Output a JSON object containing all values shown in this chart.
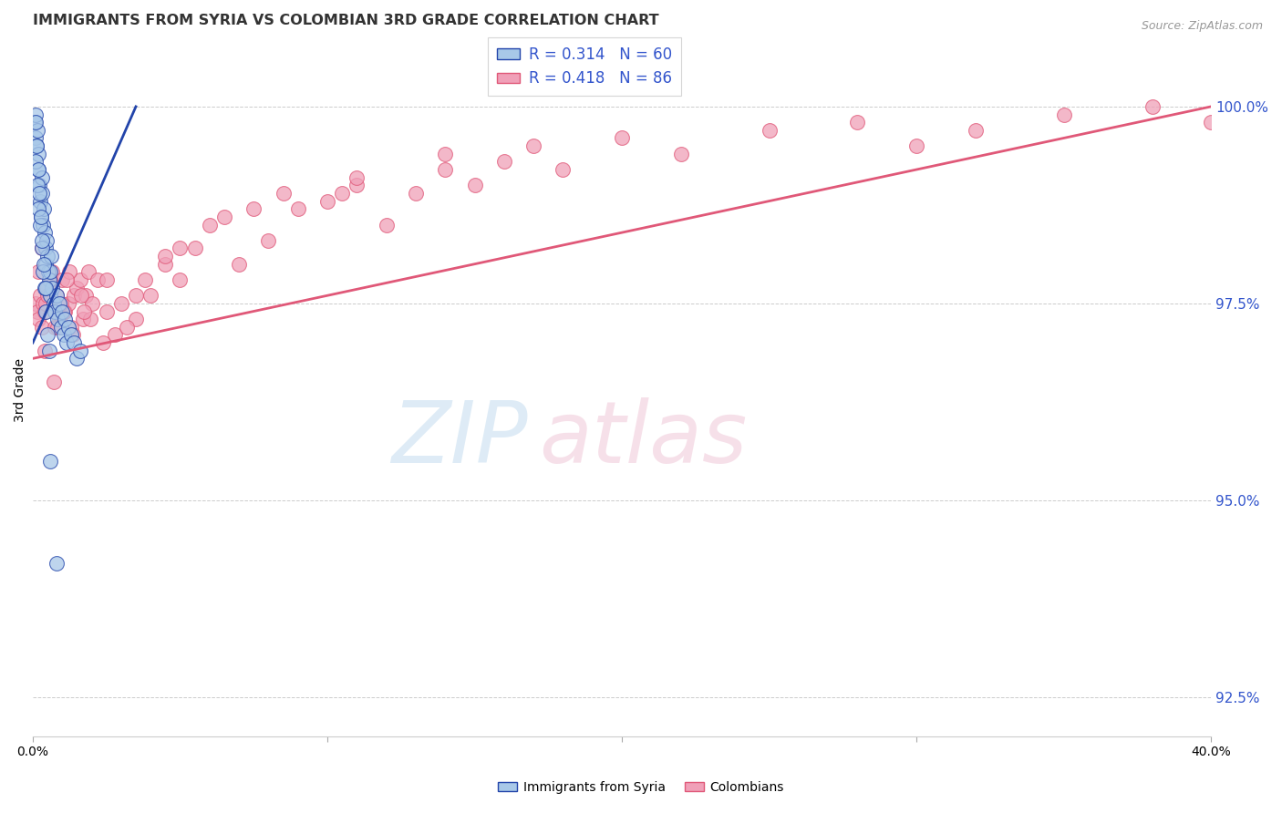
{
  "title": "IMMIGRANTS FROM SYRIA VS COLOMBIAN 3RD GRADE CORRELATION CHART",
  "source": "Source: ZipAtlas.com",
  "ylabel": "3rd Grade",
  "ylabel_right_ticks": [
    92.5,
    95.0,
    97.5,
    100.0
  ],
  "ylabel_right_labels": [
    "92.5%",
    "95.0%",
    "97.5%",
    "100.0%"
  ],
  "xmin": 0.0,
  "xmax": 40.0,
  "ymin": 92.0,
  "ymax": 100.8,
  "syria_color": "#a8c8e8",
  "colombia_color": "#f0a0b8",
  "syria_line_color": "#2244aa",
  "colombia_line_color": "#e05878",
  "legend_syria_label_r": "R = 0.314",
  "legend_syria_label_n": "N = 60",
  "legend_colombia_label_r": "R = 0.418",
  "legend_colombia_label_n": "N = 86",
  "legend_immigrants_label": "Immigrants from Syria",
  "legend_colombians_label": "Colombians",
  "watermark_zip": "ZIP",
  "watermark_atlas": "atlas",
  "background_color": "#ffffff",
  "grid_color": "#cccccc",
  "axis_label_color": "#3355cc",
  "title_color": "#333333",
  "syria_x": [
    0.05,
    0.08,
    0.1,
    0.12,
    0.15,
    0.18,
    0.2,
    0.22,
    0.25,
    0.28,
    0.3,
    0.32,
    0.35,
    0.38,
    0.4,
    0.42,
    0.45,
    0.48,
    0.5,
    0.52,
    0.55,
    0.58,
    0.6,
    0.62,
    0.65,
    0.7,
    0.75,
    0.8,
    0.85,
    0.9,
    0.95,
    1.0,
    1.05,
    1.1,
    1.15,
    1.2,
    1.3,
    1.4,
    1.5,
    1.6,
    0.1,
    0.15,
    0.2,
    0.25,
    0.3,
    0.35,
    0.4,
    0.45,
    0.5,
    0.55,
    0.08,
    0.12,
    0.18,
    0.22,
    0.28,
    0.32,
    0.38,
    0.42,
    0.6,
    0.8
  ],
  "syria_y": [
    99.8,
    99.6,
    99.9,
    99.5,
    99.7,
    99.4,
    99.2,
    99.0,
    98.8,
    98.6,
    98.9,
    99.1,
    98.5,
    98.7,
    98.4,
    98.2,
    98.0,
    98.3,
    98.1,
    97.9,
    97.8,
    97.6,
    97.9,
    98.1,
    97.7,
    97.5,
    97.4,
    97.6,
    97.3,
    97.5,
    97.2,
    97.4,
    97.1,
    97.3,
    97.0,
    97.2,
    97.1,
    97.0,
    96.8,
    96.9,
    99.3,
    99.0,
    98.7,
    98.5,
    98.2,
    97.9,
    97.7,
    97.4,
    97.1,
    96.9,
    99.8,
    99.5,
    99.2,
    98.9,
    98.6,
    98.3,
    98.0,
    97.7,
    95.5,
    94.2
  ],
  "colombia_x": [
    0.1,
    0.15,
    0.2,
    0.25,
    0.3,
    0.35,
    0.4,
    0.5,
    0.55,
    0.6,
    0.65,
    0.7,
    0.8,
    0.9,
    1.0,
    1.1,
    1.2,
    1.3,
    1.4,
    1.5,
    1.6,
    1.7,
    1.8,
    1.9,
    2.0,
    2.2,
    2.5,
    2.8,
    3.0,
    3.5,
    4.0,
    4.5,
    5.0,
    5.5,
    6.0,
    7.0,
    8.0,
    9.0,
    10.0,
    11.0,
    12.0,
    13.0,
    14.0,
    15.0,
    16.0,
    17.0,
    18.0,
    20.0,
    22.0,
    25.0,
    28.0,
    30.0,
    32.0,
    35.0,
    38.0,
    40.0,
    0.45,
    0.75,
    1.05,
    1.35,
    1.65,
    1.95,
    2.4,
    3.2,
    3.8,
    4.5,
    6.5,
    8.5,
    11.0,
    14.0,
    0.3,
    0.6,
    0.95,
    1.25,
    1.75,
    2.5,
    3.5,
    5.0,
    7.5,
    10.5,
    0.2,
    0.5,
    0.85,
    1.15,
    0.4,
    0.7
  ],
  "colombia_y": [
    97.5,
    97.4,
    97.3,
    97.6,
    97.2,
    97.5,
    97.4,
    97.7,
    97.6,
    97.8,
    97.9,
    97.5,
    97.6,
    97.3,
    97.8,
    97.4,
    97.5,
    97.2,
    97.6,
    97.7,
    97.8,
    97.3,
    97.6,
    97.9,
    97.5,
    97.8,
    97.4,
    97.1,
    97.5,
    97.3,
    97.6,
    98.0,
    97.8,
    98.2,
    98.5,
    98.0,
    98.3,
    98.7,
    98.8,
    99.0,
    98.5,
    98.9,
    99.2,
    99.0,
    99.3,
    99.5,
    99.2,
    99.6,
    99.4,
    99.7,
    99.8,
    99.5,
    99.7,
    99.9,
    100.0,
    99.8,
    97.5,
    97.2,
    97.4,
    97.1,
    97.6,
    97.3,
    97.0,
    97.2,
    97.8,
    98.1,
    98.6,
    98.9,
    99.1,
    99.4,
    98.2,
    97.8,
    97.5,
    97.9,
    97.4,
    97.8,
    97.6,
    98.2,
    98.7,
    98.9,
    97.9,
    97.6,
    97.2,
    97.8,
    96.9,
    96.5
  ]
}
